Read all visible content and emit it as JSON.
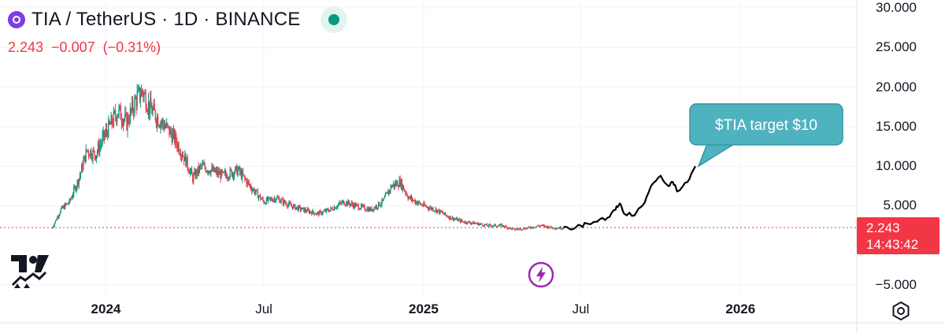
{
  "header": {
    "title": "TIA / TetherUS · 1D · BINANCE",
    "symbol_icon": "tia-coin-icon",
    "status_icon": "market-open-dot-icon"
  },
  "quote": {
    "price": "2.243",
    "change": "−0.007",
    "change_pct": "(−0.31%)"
  },
  "price_tag": {
    "price": "2.243",
    "countdown": "14:43:42"
  },
  "annotation": {
    "text": "$TIA target $10"
  },
  "colors": {
    "up": "#089981",
    "down": "#f23645",
    "projection": "#000000",
    "callout": "#4fb3bf",
    "grid": "#f0f3fa",
    "current_price_line": "#f23645"
  },
  "icons": {
    "logo": "tradingview-logo-icon",
    "flash": "flash-icon",
    "settings": "settings-gear-icon"
  },
  "chart_data": {
    "type": "line",
    "series": [
      {
        "values": [
          [
            "2023-10-31",
            2.2
          ],
          [
            "2023-11-10",
            4.5
          ],
          [
            "2023-11-20",
            5.5
          ],
          [
            "2023-12-01",
            8.5
          ],
          [
            "2023-12-10",
            12.0
          ],
          [
            "2023-12-20",
            11.5
          ],
          [
            "2023-12-31",
            14.0
          ],
          [
            "2024-01-05",
            15.0
          ],
          [
            "2024-01-15",
            17.0
          ],
          [
            "2024-01-25",
            15.5
          ],
          [
            "2024-02-05",
            18.5
          ],
          [
            "2024-02-12",
            19.5
          ],
          [
            "2024-02-20",
            17.5
          ],
          [
            "2024-03-01",
            16.0
          ],
          [
            "2024-03-10",
            15.0
          ],
          [
            "2024-03-20",
            13.5
          ],
          [
            "2024-04-01",
            11.0
          ],
          [
            "2024-04-10",
            8.5
          ],
          [
            "2024-04-20",
            10.0
          ],
          [
            "2024-05-01",
            9.5
          ],
          [
            "2024-05-15",
            8.8
          ],
          [
            "2024-06-01",
            9.5
          ],
          [
            "2024-06-15",
            7.5
          ],
          [
            "2024-07-01",
            5.5
          ],
          [
            "2024-07-15",
            6.0
          ],
          [
            "2024-08-01",
            5.0
          ],
          [
            "2024-08-15",
            4.5
          ],
          [
            "2024-09-01",
            4.0
          ],
          [
            "2024-09-15",
            4.5
          ],
          [
            "2024-10-01",
            5.5
          ],
          [
            "2024-10-15",
            5.0
          ],
          [
            "2024-11-01",
            4.5
          ],
          [
            "2024-11-15",
            5.5
          ],
          [
            "2024-11-25",
            7.5
          ],
          [
            "2024-12-05",
            8.0
          ],
          [
            "2024-12-15",
            6.0
          ],
          [
            "2025-01-01",
            5.0
          ],
          [
            "2025-01-15",
            4.5
          ],
          [
            "2025-02-01",
            3.5
          ],
          [
            "2025-02-15",
            3.0
          ],
          [
            "2025-03-01",
            2.8
          ],
          [
            "2025-03-15",
            2.5
          ],
          [
            "2025-04-01",
            2.5
          ],
          [
            "2025-04-15",
            2.0
          ],
          [
            "2025-05-01",
            2.2
          ],
          [
            "2025-05-15",
            2.5
          ],
          [
            "2025-06-01",
            2.2
          ],
          [
            "2025-06-11",
            2.243
          ]
        ]
      },
      {
        "values": [
          [
            "2025-06-11",
            2.243
          ],
          [
            "2025-06-20",
            2.0
          ],
          [
            "2025-07-01",
            2.5
          ],
          [
            "2025-07-10",
            2.7
          ],
          [
            "2025-07-20",
            3.0
          ],
          [
            "2025-08-01",
            3.5
          ],
          [
            "2025-08-10",
            4.5
          ],
          [
            "2025-08-15",
            5.3
          ],
          [
            "2025-08-20",
            4.0
          ],
          [
            "2025-09-01",
            3.8
          ],
          [
            "2025-09-10",
            5.0
          ],
          [
            "2025-09-20",
            7.5
          ],
          [
            "2025-10-01",
            8.8
          ],
          [
            "2025-10-10",
            7.5
          ],
          [
            "2025-10-15",
            8.0
          ],
          [
            "2025-10-20",
            6.8
          ],
          [
            "2025-11-01",
            8.0
          ],
          [
            "2025-11-10",
            10.0
          ]
        ]
      }
    ],
    "y_ticks": [
      "30.000",
      "25.000",
      "20.000",
      "15.000",
      "10.000",
      "5.000",
      "−5.000"
    ],
    "x_ticks": [
      {
        "label": "2024",
        "date": "2024-01-01",
        "bold": true
      },
      {
        "label": "Jul",
        "date": "2024-07-01",
        "bold": false
      },
      {
        "label": "2025",
        "date": "2025-01-01",
        "bold": true
      },
      {
        "label": "Jul",
        "date": "2025-07-01",
        "bold": false
      },
      {
        "label": "2026",
        "date": "2026-01-01",
        "bold": true
      }
    ],
    "ylim": [
      -6,
      31
    ],
    "xlim": [
      "2023-09-01",
      "2026-05-15"
    ],
    "current_price": 2.243,
    "annotation": {
      "text": "$TIA target $10",
      "date": "2025-11-10",
      "value": 10.0
    },
    "grid": true,
    "legend": "none"
  }
}
